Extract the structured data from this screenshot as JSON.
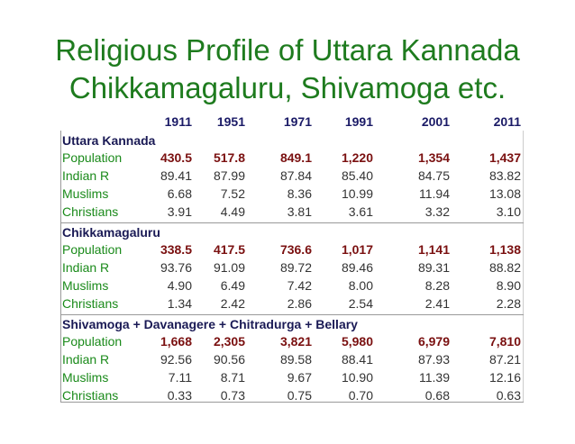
{
  "title": {
    "line1": "Religious Profile of Uttara Kannada",
    "line2": "Chikkamagaluru, Shivamoga etc."
  },
  "table": {
    "years": [
      "1911",
      "1951",
      "1971",
      "1991",
      "2001",
      "2011"
    ],
    "sections": [
      {
        "name": "Uttara Kannada",
        "rows": [
          {
            "label": "Population",
            "values": [
              "430.5",
              "517.8",
              "849.1",
              "1,220",
              "1,354",
              "1,437"
            ]
          },
          {
            "label": "Indian R",
            "values": [
              "89.41",
              "87.99",
              "87.84",
              "85.40",
              "84.75",
              "83.82"
            ]
          },
          {
            "label": "Muslims",
            "values": [
              "6.68",
              "7.52",
              "8.36",
              "10.99",
              "11.94",
              "13.08"
            ]
          },
          {
            "label": "Christians",
            "values": [
              "3.91",
              "4.49",
              "3.81",
              "3.61",
              "3.32",
              "3.10"
            ]
          }
        ]
      },
      {
        "name": "Chikkamagaluru",
        "rows": [
          {
            "label": "Population",
            "values": [
              "338.5",
              "417.5",
              "736.6",
              "1,017",
              "1,141",
              "1,138"
            ]
          },
          {
            "label": "Indian R",
            "values": [
              "93.76",
              "91.09",
              "89.72",
              "89.46",
              "89.31",
              "88.82"
            ]
          },
          {
            "label": "Muslims",
            "values": [
              "4.90",
              "6.49",
              "7.42",
              "8.00",
              "8.28",
              "8.90"
            ]
          },
          {
            "label": "Christians",
            "values": [
              "1.34",
              "2.42",
              "2.86",
              "2.54",
              "2.41",
              "2.28"
            ]
          }
        ]
      },
      {
        "name": "Shivamoga + Davanagere + Chitradurga + Bellary",
        "rows": [
          {
            "label": "Population",
            "values": [
              "1,668",
              "2,305",
              "3,821",
              "5,980",
              "6,979",
              "7,810"
            ]
          },
          {
            "label": "Indian R",
            "values": [
              "92.56",
              "90.56",
              "89.58",
              "88.41",
              "87.93",
              "87.21"
            ]
          },
          {
            "label": "Muslims",
            "values": [
              "7.11",
              "8.71",
              "9.67",
              "10.90",
              "11.39",
              "12.16"
            ]
          },
          {
            "label": "Christians",
            "values": [
              "0.33",
              "0.73",
              "0.75",
              "0.70",
              "0.68",
              "0.63"
            ]
          }
        ]
      }
    ]
  }
}
